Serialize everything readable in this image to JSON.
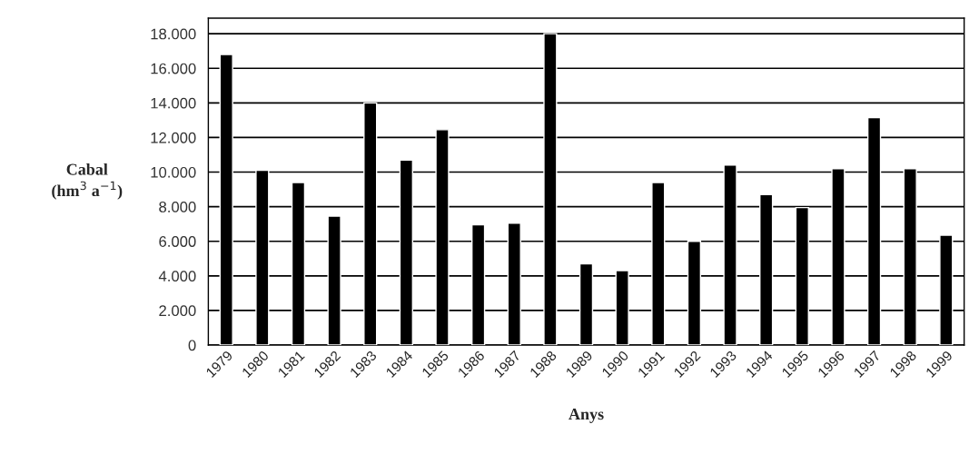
{
  "chart_data": {
    "type": "bar",
    "xlabel": "Anys",
    "ylabel": "Cabal\n(hm$^{3}$ a$^{−1}$)",
    "categories": [
      "1979",
      "1980",
      "1981",
      "1982",
      "1983",
      "1984",
      "1985",
      "1986",
      "1987",
      "1988",
      "1989",
      "1990",
      "1991",
      "1992",
      "1993",
      "1994",
      "1995",
      "1996",
      "1997",
      "1998",
      "1999"
    ],
    "values": [
      16800,
      10100,
      9400,
      7450,
      14000,
      10700,
      12450,
      6950,
      7050,
      18000,
      4700,
      4300,
      9400,
      6000,
      10400,
      8700,
      7950,
      10200,
      13150,
      10200,
      6350
    ],
    "color": "#000000",
    "ylim": [
      0,
      18900
    ],
    "yticks": [
      0,
      {
        "value": 2000,
        "label": "2.000"
      },
      {
        "value": 4000,
        "label": "4.000"
      },
      {
        "value": 6000,
        "label": "6.000"
      },
      {
        "value": 8000,
        "label": "8.000"
      },
      {
        "value": 10000,
        "label": "10.000"
      },
      {
        "value": 12000,
        "label": "12.000"
      },
      {
        "value": 14000,
        "label": "14.000"
      },
      {
        "value": 16000,
        "label": "16.000"
      },
      {
        "value": 18000,
        "label": "18.000"
      }
    ],
    "grid": "y",
    "legend": false
  }
}
